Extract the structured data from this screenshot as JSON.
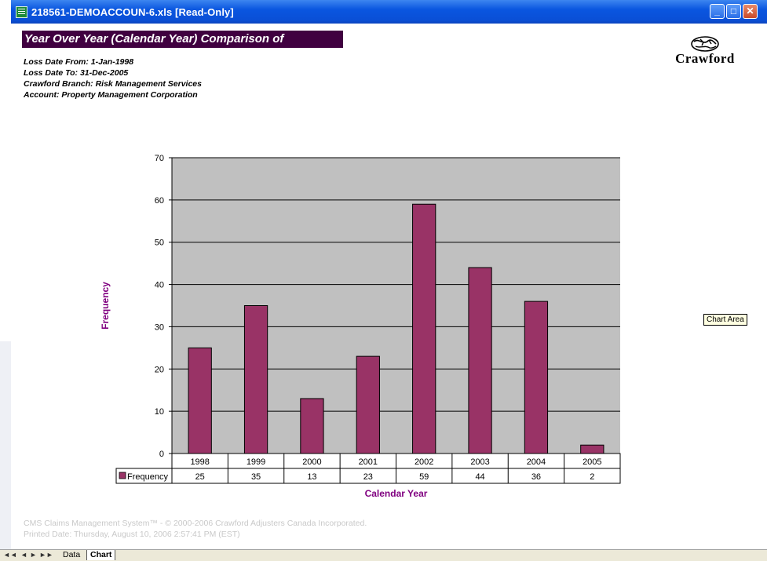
{
  "window": {
    "title": "218561-DEMOACCOUN-6.xls  [Read-Only]"
  },
  "report": {
    "title": "Year Over Year (Calendar Year) Comparison of Frequency",
    "meta": [
      "Loss Date From: 1-Jan-1998",
      "Loss Date To: 31-Dec-2005",
      "Crawford Branch: Risk Management Services",
      "Account: Property Management Corporation"
    ],
    "logo_text": "Crawford"
  },
  "chart_data": {
    "type": "bar",
    "categories": [
      "1998",
      "1999",
      "2000",
      "2001",
      "2002",
      "2003",
      "2004",
      "2005"
    ],
    "series": [
      {
        "name": "Frequency",
        "values": [
          25,
          35,
          13,
          23,
          59,
          44,
          36,
          2
        ]
      }
    ],
    "xlabel": "Calendar Year",
    "ylabel": "Frequency",
    "ylim": [
      0,
      70
    ],
    "yticks": [
      0,
      10,
      20,
      30,
      40,
      50,
      60,
      70
    ],
    "grid": true,
    "data_table": true,
    "colors": {
      "bar": "#993366",
      "plot_bg": "#c0c0c0",
      "label": "#800080"
    }
  },
  "footer": {
    "line1": "CMS Claims Management System™ - © 2000-2006 Crawford Adjusters Canada Incorporated.",
    "line2": "Printed Date: Thursday, August 10, 2006 2:57:41 PM (EST)"
  },
  "tooltip": "Chart Area",
  "sheets": {
    "tabs": [
      "Data",
      "Chart"
    ],
    "active": "Chart"
  }
}
